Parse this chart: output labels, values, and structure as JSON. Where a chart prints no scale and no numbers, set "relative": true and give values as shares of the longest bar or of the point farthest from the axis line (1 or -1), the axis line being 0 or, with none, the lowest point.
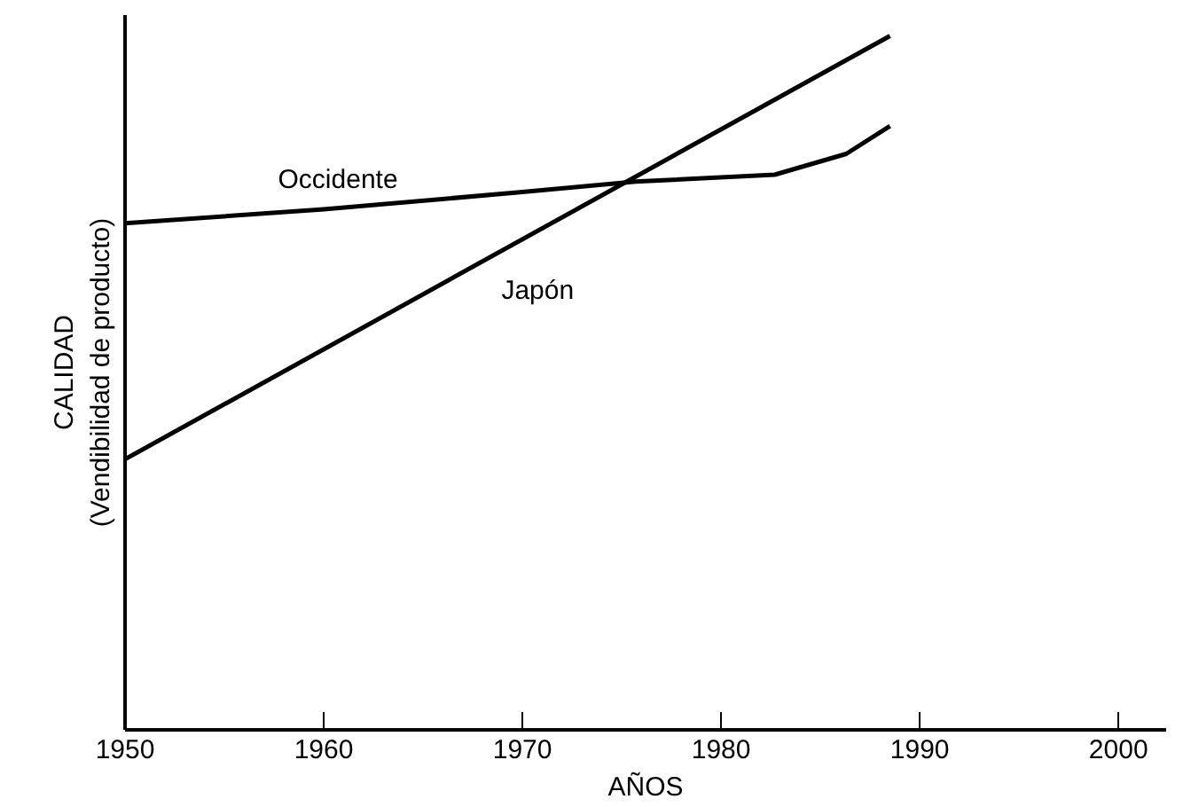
{
  "chart_data": {
    "type": "line",
    "relative": true,
    "xlabel": "AÑOS",
    "ylabel": "CALIDAD\n(Vendibilidad de producto)",
    "xlim": [
      1950,
      2002.4
    ],
    "xticks": [
      1950,
      1960,
      1970,
      1980,
      1990,
      2000
    ],
    "grid": false,
    "marker": "none",
    "line_style": "solid",
    "series": [
      {
        "name": "Occidente",
        "color": "#000000",
        "x": [
          1950,
          1960,
          1970,
          1975.7,
          1982.7,
          1986.3,
          1988.5
        ],
        "values": [
          0.73,
          0.75,
          0.775,
          0.79,
          0.8,
          0.83,
          0.87
        ]
      },
      {
        "name": "Japón",
        "color": "#000000",
        "x": [
          1950,
          1988.5
        ],
        "values": [
          0.39,
          1.0
        ]
      }
    ]
  }
}
